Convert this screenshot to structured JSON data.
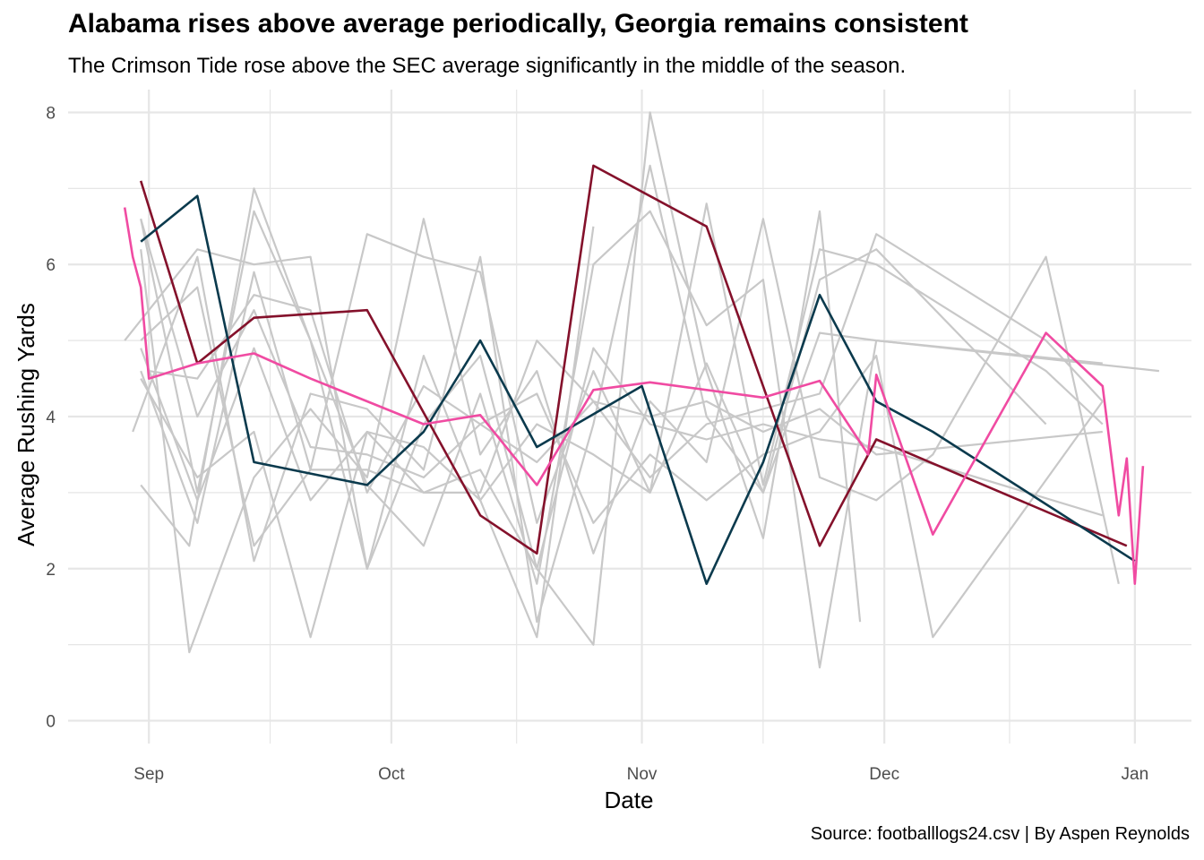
{
  "chart_data": {
    "type": "line",
    "title": "Alabama rises above average periodically, Georgia remains consistent",
    "subtitle": "The Crimson Tide rose above the SEC average significantly in the middle of the season.",
    "caption": "Source: footballlogs24.csv | By Aspen Reynolds",
    "xlabel": "Date",
    "ylabel": "Average Rushing Yards",
    "xlim": [
      "2024-08-22",
      "2025-01-08"
    ],
    "ylim": [
      -0.3,
      8.3
    ],
    "x_ticks": [
      {
        "date": "2024-09-01",
        "label": "Sep"
      },
      {
        "date": "2024-10-01",
        "label": "Oct"
      },
      {
        "date": "2024-11-01",
        "label": "Nov"
      },
      {
        "date": "2024-12-01",
        "label": "Dec"
      },
      {
        "date": "2025-01-01",
        "label": "Jan"
      }
    ],
    "y_ticks": [
      0,
      2,
      4,
      6,
      8
    ],
    "grid": true,
    "legend": "none",
    "colors": {
      "background_teams": "#c8c8c8",
      "alabama": "#84112b",
      "georgia": "#0b3a4d",
      "sec_average": "#f04ba2",
      "grid": "#e6e6e6"
    },
    "highlight_series": [
      {
        "key": "alabama",
        "color": "#84112b",
        "points": [
          [
            "2024-08-31",
            7.1
          ],
          [
            "2024-09-07",
            4.7
          ],
          [
            "2024-09-14",
            5.3
          ],
          [
            "2024-09-28",
            5.4
          ],
          [
            "2024-10-12",
            2.7
          ],
          [
            "2024-10-19",
            2.2
          ],
          [
            "2024-10-26",
            7.3
          ],
          [
            "2024-11-09",
            6.5
          ],
          [
            "2024-11-23",
            2.3
          ],
          [
            "2024-11-30",
            3.7
          ],
          [
            "2024-12-31",
            2.3
          ]
        ]
      },
      {
        "key": "georgia",
        "color": "#0b3a4d",
        "points": [
          [
            "2024-08-31",
            6.3
          ],
          [
            "2024-09-07",
            6.9
          ],
          [
            "2024-09-14",
            3.4
          ],
          [
            "2024-09-28",
            3.1
          ],
          [
            "2024-10-05",
            3.8
          ],
          [
            "2024-10-12",
            5.0
          ],
          [
            "2024-10-19",
            3.6
          ],
          [
            "2024-11-01",
            4.4
          ],
          [
            "2024-11-09",
            1.8
          ],
          [
            "2024-11-16",
            3.4
          ],
          [
            "2024-11-23",
            5.6
          ],
          [
            "2024-11-30",
            4.2
          ],
          [
            "2024-12-07",
            3.8
          ],
          [
            "2025-01-01",
            2.1
          ]
        ]
      },
      {
        "key": "sec_average",
        "color": "#f04ba2",
        "points": [
          [
            "2024-08-29",
            6.75
          ],
          [
            "2024-08-30",
            6.1
          ],
          [
            "2024-08-31",
            5.7
          ],
          [
            "2024-09-01",
            4.5
          ],
          [
            "2024-09-07",
            4.7
          ],
          [
            "2024-09-14",
            4.83
          ],
          [
            "2024-09-21",
            4.5
          ],
          [
            "2024-09-28",
            4.2
          ],
          [
            "2024-10-05",
            3.9
          ],
          [
            "2024-10-12",
            4.02
          ],
          [
            "2024-10-19",
            3.1
          ],
          [
            "2024-10-26",
            4.35
          ],
          [
            "2024-11-02",
            4.45
          ],
          [
            "2024-11-16",
            4.25
          ],
          [
            "2024-11-23",
            4.47
          ],
          [
            "2024-11-29",
            3.5
          ],
          [
            "2024-11-30",
            4.55
          ],
          [
            "2024-12-07",
            2.45
          ],
          [
            "2024-12-21",
            5.1
          ],
          [
            "2024-12-28",
            4.4
          ],
          [
            "2024-12-30",
            2.7
          ],
          [
            "2024-12-31",
            3.45
          ],
          [
            "2025-01-01",
            1.8
          ],
          [
            "2025-01-02",
            3.35
          ]
        ]
      }
    ],
    "background_series": [
      {
        "points": [
          [
            "2024-08-29",
            5.0
          ],
          [
            "2024-09-07",
            6.2
          ],
          [
            "2024-09-14",
            6.0
          ],
          [
            "2024-09-21",
            6.1
          ],
          [
            "2024-09-28",
            2.0
          ],
          [
            "2024-10-05",
            4.8
          ],
          [
            "2024-10-12",
            2.9
          ],
          [
            "2024-10-19",
            1.1
          ],
          [
            "2024-10-26",
            6.5
          ]
        ]
      },
      {
        "points": [
          [
            "2024-08-31",
            3.1
          ],
          [
            "2024-09-06",
            2.3
          ],
          [
            "2024-09-14",
            7.0
          ],
          [
            "2024-09-21",
            5.0
          ],
          [
            "2024-09-28",
            2.0
          ],
          [
            "2024-10-05",
            3.9
          ],
          [
            "2024-10-12",
            4.8
          ],
          [
            "2024-10-19",
            2.0
          ],
          [
            "2024-10-26",
            1.0
          ],
          [
            "2024-11-02",
            8.0
          ],
          [
            "2024-11-09",
            4.6
          ],
          [
            "2024-11-16",
            2.4
          ],
          [
            "2024-11-23",
            6.7
          ],
          [
            "2024-11-28",
            1.3
          ]
        ]
      },
      {
        "points": [
          [
            "2024-08-30",
            3.8
          ],
          [
            "2024-09-07",
            6.1
          ],
          [
            "2024-09-14",
            2.1
          ],
          [
            "2024-09-21",
            4.3
          ],
          [
            "2024-09-28",
            4.1
          ],
          [
            "2024-10-05",
            3.3
          ],
          [
            "2024-10-12",
            6.1
          ],
          [
            "2024-10-19",
            1.3
          ],
          [
            "2024-10-26",
            3.9
          ],
          [
            "2024-11-02",
            7.3
          ],
          [
            "2024-11-09",
            4.0
          ],
          [
            "2024-11-16",
            3.0
          ],
          [
            "2024-11-23",
            5.8
          ],
          [
            "2024-11-30",
            6.2
          ],
          [
            "2024-12-21",
            3.9
          ]
        ]
      },
      {
        "points": [
          [
            "2024-08-31",
            6.6
          ],
          [
            "2024-09-07",
            3.0
          ],
          [
            "2024-09-14",
            6.7
          ],
          [
            "2024-09-21",
            5.0
          ],
          [
            "2024-09-28",
            3.1
          ],
          [
            "2024-10-05",
            2.3
          ],
          [
            "2024-10-12",
            4.3
          ],
          [
            "2024-10-19",
            1.8
          ],
          [
            "2024-10-26",
            6.0
          ],
          [
            "2024-11-02",
            6.7
          ],
          [
            "2024-11-09",
            5.2
          ],
          [
            "2024-11-16",
            5.8
          ],
          [
            "2024-11-23",
            0.7
          ],
          [
            "2024-11-30",
            5.0
          ],
          [
            "2024-12-28",
            4.7
          ]
        ]
      },
      {
        "points": [
          [
            "2024-08-31",
            4.6
          ],
          [
            "2024-09-07",
            2.6
          ],
          [
            "2024-09-14",
            5.9
          ],
          [
            "2024-09-21",
            3.3
          ],
          [
            "2024-09-28",
            6.4
          ],
          [
            "2024-10-05",
            6.1
          ],
          [
            "2024-10-12",
            5.9
          ],
          [
            "2024-10-19",
            2.6
          ],
          [
            "2024-10-26",
            4.6
          ],
          [
            "2024-11-02",
            3.0
          ],
          [
            "2024-11-09",
            6.8
          ],
          [
            "2024-11-16",
            3.1
          ],
          [
            "2024-11-23",
            6.2
          ],
          [
            "2024-11-30",
            6.0
          ],
          [
            "2024-12-21",
            4.6
          ],
          [
            "2024-12-28",
            3.9
          ]
        ]
      },
      {
        "points": [
          [
            "2024-08-31",
            6.2
          ],
          [
            "2024-09-06",
            0.9
          ],
          [
            "2024-09-14",
            3.2
          ],
          [
            "2024-09-21",
            4.1
          ],
          [
            "2024-09-28",
            3.2
          ],
          [
            "2024-10-05",
            6.6
          ],
          [
            "2024-10-12",
            3.5
          ],
          [
            "2024-10-19",
            4.6
          ],
          [
            "2024-10-26",
            2.2
          ],
          [
            "2024-11-02",
            4.2
          ],
          [
            "2024-11-09",
            3.4
          ],
          [
            "2024-11-16",
            6.6
          ],
          [
            "2024-11-23",
            3.2
          ],
          [
            "2024-11-30",
            2.9
          ],
          [
            "2024-12-07",
            3.5
          ],
          [
            "2024-12-21",
            6.1
          ],
          [
            "2024-12-30",
            1.8
          ]
        ]
      },
      {
        "points": [
          [
            "2024-08-31",
            5.0
          ],
          [
            "2024-09-07",
            5.7
          ],
          [
            "2024-09-14",
            2.3
          ],
          [
            "2024-09-21",
            3.3
          ],
          [
            "2024-09-28",
            3.3
          ],
          [
            "2024-10-05",
            3.0
          ],
          [
            "2024-10-12",
            3.0
          ],
          [
            "2024-10-19",
            5.0
          ],
          [
            "2024-10-26",
            4.2
          ],
          [
            "2024-11-02",
            3.2
          ],
          [
            "2024-11-09",
            3.9
          ],
          [
            "2024-11-16",
            4.1
          ],
          [
            "2024-11-23",
            4.3
          ],
          [
            "2024-11-30",
            6.4
          ],
          [
            "2024-12-21",
            5.0
          ],
          [
            "2024-12-28",
            4.2
          ]
        ]
      },
      {
        "points": [
          [
            "2024-08-31",
            4.5
          ],
          [
            "2024-09-07",
            3.2
          ],
          [
            "2024-09-14",
            3.8
          ],
          [
            "2024-09-21",
            1.1
          ],
          [
            "2024-09-28",
            3.8
          ],
          [
            "2024-10-05",
            3.6
          ],
          [
            "2024-10-12",
            2.9
          ],
          [
            "2024-10-19",
            3.9
          ],
          [
            "2024-10-26",
            3.5
          ],
          [
            "2024-11-02",
            3.0
          ],
          [
            "2024-11-09",
            4.7
          ],
          [
            "2024-11-16",
            3.0
          ],
          [
            "2024-11-23",
            5.1
          ],
          [
            "2024-11-30",
            5.0
          ],
          [
            "2025-01-04",
            4.6
          ]
        ]
      },
      {
        "points": [
          [
            "2024-09-01",
            4.6
          ],
          [
            "2024-09-07",
            4.5
          ],
          [
            "2024-09-14",
            5.6
          ],
          [
            "2024-09-21",
            5.4
          ],
          [
            "2024-09-28",
            3.0
          ],
          [
            "2024-10-05",
            4.4
          ],
          [
            "2024-10-12",
            3.9
          ],
          [
            "2024-10-19",
            3.4
          ],
          [
            "2024-10-26",
            4.2
          ],
          [
            "2024-11-02",
            4.0
          ],
          [
            "2024-11-09",
            4.2
          ],
          [
            "2024-11-16",
            3.8
          ],
          [
            "2024-11-23",
            4.1
          ],
          [
            "2024-11-30",
            3.5
          ],
          [
            "2024-12-28",
            3.8
          ]
        ]
      },
      {
        "points": [
          [
            "2024-08-31",
            6.6
          ],
          [
            "2024-09-07",
            4.0
          ],
          [
            "2024-09-14",
            5.4
          ],
          [
            "2024-09-21",
            3.6
          ],
          [
            "2024-09-28",
            3.5
          ],
          [
            "2024-10-05",
            3.2
          ],
          [
            "2024-10-12",
            3.9
          ],
          [
            "2024-10-19",
            4.3
          ],
          [
            "2024-10-26",
            2.6
          ],
          [
            "2024-11-02",
            3.5
          ],
          [
            "2024-11-09",
            2.9
          ],
          [
            "2024-11-16",
            3.5
          ],
          [
            "2024-11-23",
            3.8
          ],
          [
            "2024-11-30",
            4.8
          ],
          [
            "2024-12-07",
            1.1
          ],
          [
            "2024-12-28",
            4.2
          ]
        ]
      },
      {
        "points": [
          [
            "2024-08-31",
            4.9
          ],
          [
            "2024-09-07",
            2.9
          ],
          [
            "2024-09-14",
            4.9
          ],
          [
            "2024-09-21",
            2.9
          ],
          [
            "2024-09-28",
            3.8
          ],
          [
            "2024-10-05",
            3.0
          ],
          [
            "2024-10-12",
            3.3
          ],
          [
            "2024-10-19",
            2.0
          ],
          [
            "2024-10-26",
            4.9
          ],
          [
            "2024-11-02",
            3.9
          ],
          [
            "2024-11-09",
            3.7
          ],
          [
            "2024-11-16",
            3.9
          ],
          [
            "2024-11-23",
            3.7
          ],
          [
            "2024-11-30",
            3.6
          ],
          [
            "2024-12-28",
            2.7
          ]
        ]
      }
    ]
  }
}
